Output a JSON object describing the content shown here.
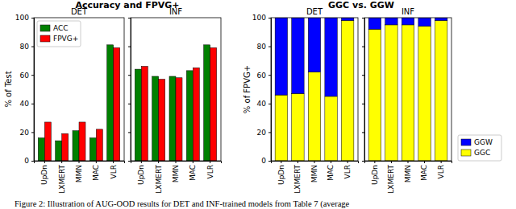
{
  "chart_data": [
    {
      "type": "bar",
      "title": "DET",
      "y_label": "% of Test",
      "categories": [
        "UpDn",
        "LXMERT",
        "MMN",
        "MAC",
        "VLR"
      ],
      "series": [
        {
          "name": "ACC",
          "color": "#008000",
          "values": [
            16,
            14,
            21,
            16,
            81
          ]
        },
        {
          "name": "FPVG+",
          "color": "#ff0000",
          "values": [
            27,
            19,
            27,
            22,
            79
          ]
        }
      ],
      "ylim": [
        0,
        100
      ],
      "yticks": [
        0,
        20,
        40,
        60,
        80,
        100
      ],
      "legend": "upper left"
    },
    {
      "type": "bar",
      "title": "INF",
      "categories": [
        "UpDn",
        "LXMERT",
        "MMN",
        "MAC",
        "VLR"
      ],
      "series": [
        {
          "name": "ACC",
          "color": "#008000",
          "values": [
            64,
            59,
            59,
            63,
            81
          ]
        },
        {
          "name": "FPVG+",
          "color": "#ff0000",
          "values": [
            66,
            57,
            58,
            65,
            79
          ]
        }
      ],
      "ylim": [
        0,
        100
      ],
      "yticks": [
        0,
        20,
        40,
        60,
        80,
        100
      ],
      "tick_labels": "x"
    },
    {
      "type": "bar",
      "stacked": true,
      "title": "DET",
      "y_label": "% of FPVG+",
      "categories": [
        "UpDn",
        "LXMERT",
        "MMN",
        "MAC",
        "VLR"
      ],
      "series": [
        {
          "name": "GGC",
          "color": "#ffff00",
          "values": [
            46,
            47,
            62,
            45,
            98
          ]
        },
        {
          "name": "GGW",
          "color": "#0000ff",
          "values": [
            54,
            53,
            38,
            55,
            2
          ]
        }
      ],
      "ylim": [
        0,
        100
      ],
      "yticks": [
        0,
        20,
        40,
        60,
        80,
        100
      ]
    },
    {
      "type": "bar",
      "stacked": true,
      "title": "INF",
      "categories": [
        "UpDn",
        "LXMERT",
        "MMN",
        "MAC",
        "VLR"
      ],
      "series": [
        {
          "name": "GGC",
          "color": "#ffff00",
          "values": [
            92,
            95,
            95,
            94,
            98
          ]
        },
        {
          "name": "GGW",
          "color": "#0000ff",
          "values": [
            8,
            5,
            5,
            6,
            2
          ]
        }
      ],
      "ylim": [
        0,
        100
      ],
      "yticks": [
        0,
        20,
        40,
        60,
        80,
        100
      ],
      "tick_labels": "x",
      "legend": "right"
    }
  ],
  "group_titles": [
    "Accuracy and FPVG+",
    "GGC vs. GGW"
  ],
  "caption": "Figure 2: Illustration of AUG-OOD results for DET and INF-trained models from Table 7 (average"
}
